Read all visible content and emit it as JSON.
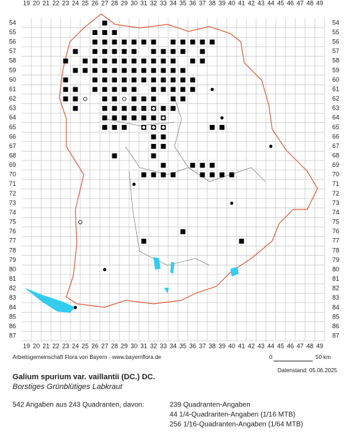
{
  "map": {
    "columns": [
      19,
      20,
      21,
      22,
      23,
      24,
      25,
      26,
      27,
      28,
      29,
      30,
      31,
      32,
      33,
      34,
      35,
      36,
      37,
      38,
      39,
      40,
      41,
      42,
      43,
      44,
      45,
      46,
      47,
      48,
      49
    ],
    "rows": [
      54,
      55,
      56,
      57,
      58,
      59,
      60,
      61,
      62,
      63,
      64,
      65,
      66,
      67,
      68,
      69,
      70,
      71,
      72,
      73,
      74,
      75,
      76,
      77,
      78,
      79,
      80,
      81,
      82,
      83,
      84,
      85,
      86,
      87
    ],
    "squares": [
      [
        27,
        54
      ],
      [
        26,
        55
      ],
      [
        27,
        55
      ],
      [
        28,
        55
      ],
      [
        26,
        56
      ],
      [
        27,
        56
      ],
      [
        28,
        56
      ],
      [
        29,
        56
      ],
      [
        30,
        56
      ],
      [
        31,
        56
      ],
      [
        32,
        56
      ],
      [
        34,
        56
      ],
      [
        35,
        56
      ],
      [
        36,
        56
      ],
      [
        37,
        56
      ],
      [
        38,
        56
      ],
      [
        24,
        57
      ],
      [
        26,
        57
      ],
      [
        27,
        57
      ],
      [
        28,
        57
      ],
      [
        29,
        57
      ],
      [
        30,
        57
      ],
      [
        32,
        57
      ],
      [
        33,
        57
      ],
      [
        34,
        57
      ],
      [
        35,
        57
      ],
      [
        37,
        57
      ],
      [
        23,
        58
      ],
      [
        25,
        58
      ],
      [
        26,
        58
      ],
      [
        27,
        58
      ],
      [
        28,
        58
      ],
      [
        29,
        58
      ],
      [
        30,
        58
      ],
      [
        31,
        58
      ],
      [
        32,
        58
      ],
      [
        33,
        58
      ],
      [
        34,
        58
      ],
      [
        36,
        58
      ],
      [
        37,
        58
      ],
      [
        24,
        59
      ],
      [
        25,
        59
      ],
      [
        26,
        59
      ],
      [
        27,
        59
      ],
      [
        28,
        59
      ],
      [
        29,
        59
      ],
      [
        30,
        59
      ],
      [
        31,
        59
      ],
      [
        32,
        59
      ],
      [
        33,
        59
      ],
      [
        34,
        59
      ],
      [
        35,
        59
      ],
      [
        23,
        60
      ],
      [
        26,
        60
      ],
      [
        27,
        60
      ],
      [
        28,
        60
      ],
      [
        29,
        60
      ],
      [
        30,
        60
      ],
      [
        31,
        60
      ],
      [
        32,
        60
      ],
      [
        33,
        60
      ],
      [
        34,
        60
      ],
      [
        35,
        60
      ],
      [
        36,
        60
      ],
      [
        23,
        61
      ],
      [
        24,
        61
      ],
      [
        26,
        61
      ],
      [
        27,
        61
      ],
      [
        28,
        61
      ],
      [
        29,
        61
      ],
      [
        30,
        61
      ],
      [
        32,
        61
      ],
      [
        33,
        61
      ],
      [
        34,
        61
      ],
      [
        35,
        61
      ],
      [
        36,
        61
      ],
      [
        23,
        62
      ],
      [
        24,
        62
      ],
      [
        27,
        62
      ],
      [
        28,
        62
      ],
      [
        30,
        62
      ],
      [
        31,
        62
      ],
      [
        32,
        62
      ],
      [
        34,
        62
      ],
      [
        35,
        62
      ],
      [
        24,
        63
      ],
      [
        27,
        63
      ],
      [
        28,
        63
      ],
      [
        29,
        63
      ],
      [
        30,
        63
      ],
      [
        31,
        63
      ],
      [
        32,
        63
      ],
      [
        33,
        63
      ],
      [
        34,
        63
      ],
      [
        27,
        64
      ],
      [
        28,
        64
      ],
      [
        29,
        64
      ],
      [
        30,
        64
      ],
      [
        31,
        64
      ],
      [
        32,
        64
      ],
      [
        33,
        64
      ],
      [
        27,
        65
      ],
      [
        28,
        65
      ],
      [
        29,
        65
      ],
      [
        31,
        65
      ],
      [
        32,
        65
      ],
      [
        33,
        65
      ],
      [
        38,
        65
      ],
      [
        39,
        65
      ],
      [
        32,
        66
      ],
      [
        33,
        66
      ],
      [
        32,
        67
      ],
      [
        33,
        67
      ],
      [
        28,
        68
      ],
      [
        32,
        68
      ],
      [
        33,
        69
      ],
      [
        36,
        69
      ],
      [
        37,
        69
      ],
      [
        38,
        69
      ],
      [
        31,
        70
      ],
      [
        32,
        70
      ],
      [
        33,
        70
      ],
      [
        34,
        70
      ],
      [
        37,
        70
      ],
      [
        38,
        70
      ],
      [
        39,
        70
      ],
      [
        40,
        70
      ],
      [
        35,
        76
      ],
      [
        31,
        77
      ],
      [
        41,
        77
      ]
    ],
    "open_circles": [
      [
        25,
        62
      ],
      [
        29,
        62
      ],
      [
        32,
        63
      ],
      [
        33,
        64
      ],
      [
        31,
        65
      ],
      [
        32,
        65
      ],
      [
        33,
        65
      ],
      [
        24.5,
        75
      ]
    ],
    "dots": [
      [
        38,
        61
      ],
      [
        39,
        64
      ],
      [
        44,
        67
      ],
      [
        30,
        71
      ],
      [
        40,
        73
      ],
      [
        27,
        80
      ],
      [
        24,
        84
      ]
    ]
  },
  "footer": {
    "credit": "Arbeitsgemeinschaft Flora von Bayern - www.bayernflora.de",
    "scale_start": "0",
    "scale_end": "50 km",
    "date": "Datenstand: 05.06.2025"
  },
  "species": {
    "name": "Galium spurium var. vaillantii (DC.) DC.",
    "german": "Borstiges Grünblütiges Labkraut"
  },
  "stats": {
    "summary": "542 Angaben aus 243 Quadranten, davon:",
    "lines": [
      "239 Quadranten-Angaben",
      "44 1/4-Quadranten-Angaben (1/16 MTB)",
      "256 1/16-Quadranten-Angaben (1/64 MTB)"
    ]
  }
}
